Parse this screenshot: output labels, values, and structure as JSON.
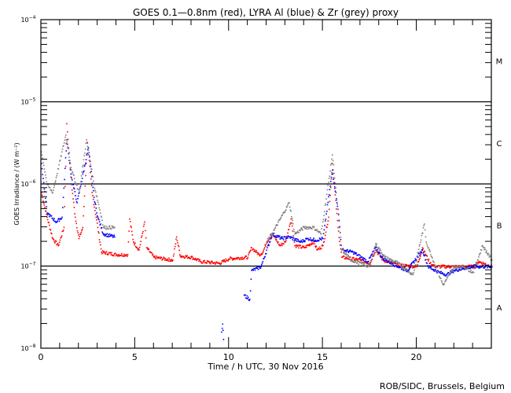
{
  "chart_data": {
    "type": "scatter",
    "title": "GOES 0.1—0.8nm (red), LYRA Al (blue) & Zr (grey) proxy",
    "xlabel": "Time / h UTC, 30 Nov 2016",
    "ylabel": "GOES Irradiance / (W m⁻²)",
    "xlim": [
      0,
      24
    ],
    "ylim": [
      1e-08,
      0.0001
    ],
    "yscale": "log",
    "x_ticks": [
      "0",
      "5",
      "10",
      "15",
      "20"
    ],
    "x_tick_values": [
      0,
      5,
      10,
      15,
      20
    ],
    "y_ticks": [
      {
        "value": 0.0001,
        "base": "10",
        "exp": "−4"
      },
      {
        "value": 1e-05,
        "base": "10",
        "exp": "−5"
      },
      {
        "value": 1e-06,
        "base": "10",
        "exp": "−6"
      },
      {
        "value": 1e-07,
        "base": "10",
        "exp": "−7"
      },
      {
        "value": 1e-08,
        "base": "10",
        "exp": "−8"
      }
    ],
    "flare_classes": [
      {
        "label": "M",
        "value": 3.16e-05
      },
      {
        "label": "C",
        "value": 3.16e-06
      },
      {
        "label": "B",
        "value": 3.16e-07
      },
      {
        "label": "A",
        "value": 3.16e-08
      }
    ],
    "reference_lines": [
      1e-05,
      1e-06,
      1e-07
    ],
    "series": [
      {
        "name": "GOES 0.1-0.8nm",
        "color": "#ff0000",
        "points": [
          [
            0.0,
            8e-07
          ],
          [
            0.3,
            4e-07
          ],
          [
            0.6,
            2.2e-07
          ],
          [
            0.9,
            1.8e-07
          ],
          [
            1.2,
            3e-07
          ],
          [
            1.35,
            5.5e-06
          ],
          [
            1.6,
            1e-06
          ],
          [
            1.8,
            4e-07
          ],
          [
            2.0,
            2.2e-07
          ],
          [
            2.2,
            3e-07
          ],
          [
            2.45,
            3.2e-06
          ],
          [
            2.7,
            8e-07
          ],
          [
            3.0,
            3e-07
          ],
          [
            3.2,
            1.5e-07
          ],
          [
            4.0,
            1.4e-07
          ],
          [
            4.6,
            1.4e-07
          ],
          [
            4.7,
            3.8e-07
          ],
          [
            4.9,
            2e-07
          ],
          [
            5.2,
            1.6e-07
          ],
          [
            5.5,
            3.5e-07
          ],
          [
            5.6,
            1.7e-07
          ],
          [
            6.0,
            1.3e-07
          ],
          [
            7.0,
            1.2e-07
          ],
          [
            7.2,
            2.3e-07
          ],
          [
            7.4,
            1.35e-07
          ],
          [
            8.0,
            1.3e-07
          ],
          [
            8.5,
            1.15e-07
          ],
          [
            9.5,
            1.1e-07
          ],
          [
            10.0,
            1.25e-07
          ],
          [
            11.0,
            1.3e-07
          ],
          [
            11.2,
            1.7e-07
          ],
          [
            11.6,
            1.4e-07
          ],
          [
            11.8,
            1.5e-07
          ],
          [
            12.0,
            2e-07
          ],
          [
            12.3,
            2.5e-07
          ],
          [
            12.7,
            1.8e-07
          ],
          [
            13.0,
            2e-07
          ],
          [
            13.3,
            3.8e-07
          ],
          [
            13.5,
            1.8e-07
          ],
          [
            14.0,
            1.7e-07
          ],
          [
            14.5,
            2e-07
          ],
          [
            14.7,
            1.6e-07
          ],
          [
            15.0,
            1.8e-07
          ],
          [
            15.3,
            4e-07
          ],
          [
            15.5,
            1.8e-06
          ],
          [
            15.8,
            3e-07
          ],
          [
            16.0,
            1.3e-07
          ],
          [
            17.0,
            1.2e-07
          ],
          [
            17.5,
            1.1e-07
          ],
          [
            17.8,
            1.6e-07
          ],
          [
            18.2,
            1.2e-07
          ],
          [
            19.0,
            1.05e-07
          ],
          [
            20.0,
            1e-07
          ],
          [
            20.3,
            1.7e-07
          ],
          [
            20.7,
            1.1e-07
          ],
          [
            21.0,
            1e-07
          ],
          [
            22.0,
            1e-07
          ],
          [
            23.0,
            1e-07
          ],
          [
            23.3,
            1.15e-07
          ],
          [
            24.0,
            1e-07
          ]
        ]
      },
      {
        "name": "LYRA Al proxy",
        "color": "#0000ff",
        "points": [
          [
            0.0,
            1.8e-06
          ],
          [
            0.3,
            4.5e-07
          ],
          [
            0.8,
            3.5e-07
          ],
          [
            1.1,
            4e-07
          ],
          [
            1.35,
            3.5e-06
          ],
          [
            1.6,
            1.2e-06
          ],
          [
            1.9,
            6e-07
          ],
          [
            2.5,
            2.8e-06
          ],
          [
            2.8,
            7e-07
          ],
          [
            3.0,
            4e-07
          ],
          [
            3.3,
            2.5e-07
          ],
          [
            3.9,
            2.3e-07
          ],
          [
            9.6,
            1.6e-08
          ],
          [
            9.65,
            2e-08
          ],
          [
            9.7,
            1.3e-08
          ],
          [
            10.8,
            4.5e-08
          ],
          [
            11.1,
            4e-08
          ],
          [
            11.2,
            9e-08
          ],
          [
            11.5,
            9.5e-08
          ],
          [
            11.7,
            1e-07
          ],
          [
            12.3,
            2.5e-07
          ],
          [
            12.8,
            2.2e-07
          ],
          [
            13.2,
            2.3e-07
          ],
          [
            13.8,
            2e-07
          ],
          [
            14.2,
            2.2e-07
          ],
          [
            14.6,
            2.1e-07
          ],
          [
            15.0,
            2.2e-07
          ],
          [
            15.5,
            1.5e-06
          ],
          [
            15.8,
            5e-07
          ],
          [
            16.0,
            1.6e-07
          ],
          [
            16.6,
            1.5e-07
          ],
          [
            17.4,
            1.15e-07
          ],
          [
            17.8,
            1.7e-07
          ],
          [
            18.2,
            1.25e-07
          ],
          [
            19.0,
            1e-07
          ],
          [
            19.5,
            9e-08
          ],
          [
            20.3,
            1.6e-07
          ],
          [
            20.6,
            1e-07
          ],
          [
            21.2,
            8.5e-08
          ],
          [
            21.6,
            8e-08
          ],
          [
            22.0,
            9e-08
          ],
          [
            22.5,
            9.5e-08
          ],
          [
            23.0,
            1e-07
          ],
          [
            24.0,
            1e-07
          ]
        ]
      },
      {
        "name": "LYRA Zr proxy",
        "color": "#808080",
        "points": [
          [
            0.0,
            2.5e-06
          ],
          [
            0.3,
            1e-06
          ],
          [
            0.6,
            8e-07
          ],
          [
            1.3,
            4e-06
          ],
          [
            1.6,
            1.5e-06
          ],
          [
            2.0,
            8e-07
          ],
          [
            2.4,
            3.5e-06
          ],
          [
            2.8,
            1e-06
          ],
          [
            3.2,
            4e-07
          ],
          [
            3.3,
            3e-07
          ],
          [
            3.9,
            3e-07
          ],
          [
            12.0,
            2e-07
          ],
          [
            12.4,
            2.8e-07
          ],
          [
            13.2,
            6e-07
          ],
          [
            13.5,
            2.5e-07
          ],
          [
            14.0,
            3e-07
          ],
          [
            14.5,
            3e-07
          ],
          [
            14.9,
            2.5e-07
          ],
          [
            15.5,
            2.3e-06
          ],
          [
            16.0,
            1.6e-07
          ],
          [
            16.5,
            1.2e-07
          ],
          [
            17.5,
            1e-07
          ],
          [
            17.8,
            1.9e-07
          ],
          [
            18.3,
            1.3e-07
          ],
          [
            19.0,
            1.1e-07
          ],
          [
            19.8,
            8e-08
          ],
          [
            20.4,
            3.3e-07
          ],
          [
            20.5,
            2e-07
          ],
          [
            21.0,
            1e-07
          ],
          [
            21.4,
            6e-08
          ],
          [
            22.0,
            1e-07
          ],
          [
            22.5,
            1e-07
          ],
          [
            23.0,
            8.5e-08
          ],
          [
            23.5,
            1.8e-07
          ],
          [
            24.0,
            1.2e-07
          ]
        ]
      }
    ],
    "credit": "ROB/SIDC, Brussels, Belgium"
  }
}
